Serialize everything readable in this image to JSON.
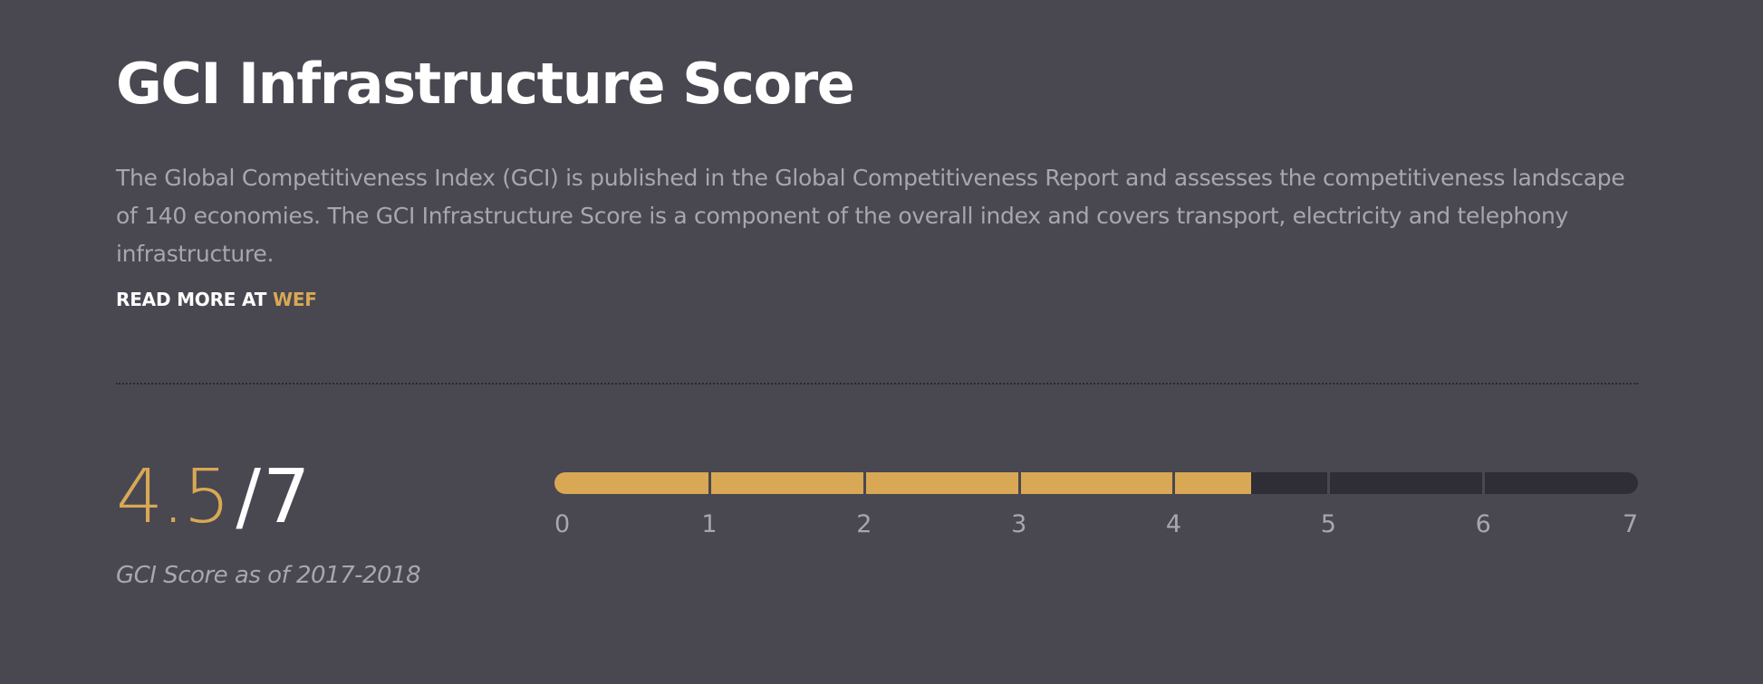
{
  "header": {
    "title": "GCI Infrastructure Score"
  },
  "description": {
    "text": "The Global Competitiveness Index (GCI)  is published in the Global Competitiveness Report and assesses the competitiveness landscape of 140 economies. The GCI Infrastructure Score is a component of the overall index and covers transport, electricity and telephony infrastructure."
  },
  "read_more": {
    "prefix": "READ MORE AT ",
    "link_label": "WEF"
  },
  "score": {
    "value": "4.5",
    "separator": "/",
    "max": "7",
    "caption": "GCI Score as of 2017-2018"
  },
  "progress": {
    "min": 0,
    "max": 7,
    "value": 4.5,
    "tick_labels": [
      "0",
      "1",
      "2",
      "3",
      "4",
      "5",
      "6",
      "7"
    ]
  },
  "colors": {
    "background": "#494750",
    "accent": "#d8a855",
    "track": "#2f2d35",
    "muted_text": "#a8a6b0",
    "text": "#ffffff"
  }
}
